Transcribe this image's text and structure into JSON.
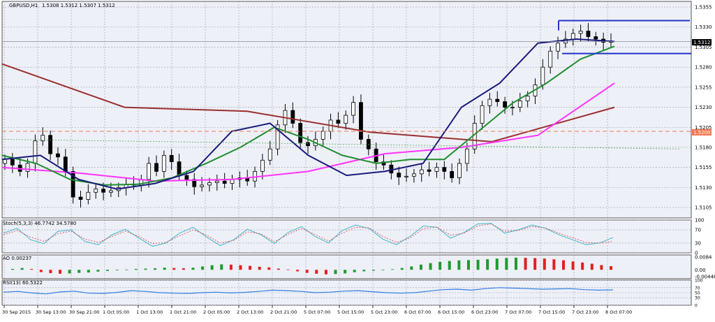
{
  "chart_data": [
    {
      "type": "candlestick",
      "title": "GBPUSD,H1",
      "ohlc_header": "1.5308 1.5312 1.5307 1.5312",
      "y_ticks": [
        "1.5355",
        "1.5330",
        "1.5305",
        "1.5280",
        "1.5255",
        "1.5230",
        "1.5205",
        "1.5180",
        "1.5155",
        "1.5130",
        "1.5105"
      ],
      "ylim": [
        1.5092,
        1.5362
      ],
      "current_price": "1.5312",
      "level_label": "1.5200",
      "level_value": 1.52,
      "resistance": 1.5338,
      "support": 1.5297,
      "x_ticks": [
        "30 Sep 2015",
        "30 Sep 13:00",
        "30 Sep 21:00",
        "1 Oct 05:00",
        "1 Oct 13:00",
        "1 Oct 21:00",
        "2 Oct 05:00",
        "2 Oct 13:00",
        "2 Oct 21:00",
        "5 Oct 07:00",
        "5 Oct 15:00",
        "5 Oct 23:00",
        "6 Oct 07:00",
        "6 Oct 15:00",
        "6 Oct 23:00",
        "7 Oct 07:00",
        "7 Oct 15:00",
        "7 Oct 23:00",
        "8 Oct 07:00"
      ],
      "closes": [
        1.5165,
        1.5158,
        1.515,
        1.516,
        1.5188,
        1.5195,
        1.5172,
        1.5168,
        1.515,
        1.5118,
        1.5115,
        1.5124,
        1.5128,
        1.5124,
        1.5126,
        1.513,
        1.5134,
        1.5133,
        1.514,
        1.516,
        1.515,
        1.517,
        1.5162,
        1.5145,
        1.514,
        1.5131,
        1.5133,
        1.5136,
        1.5138,
        1.5135,
        1.514,
        1.5142,
        1.5138,
        1.515,
        1.5164,
        1.5178,
        1.5208,
        1.5226,
        1.521,
        1.5186,
        1.5182,
        1.519,
        1.52,
        1.5214,
        1.521,
        1.522,
        1.5236,
        1.519,
        1.5178,
        1.5162,
        1.5158,
        1.5148,
        1.5143,
        1.5144,
        1.5147,
        1.5152,
        1.515,
        1.5155,
        1.515,
        1.5142,
        1.516,
        1.5178,
        1.521,
        1.5232,
        1.524,
        1.5237,
        1.523,
        1.523,
        1.5238,
        1.5244,
        1.5258,
        1.528,
        1.53,
        1.531,
        1.5315,
        1.5322,
        1.5325,
        1.5318,
        1.5315,
        1.5311,
        1.5312
      ],
      "ma_200": [
        1.5284,
        1.523,
        1.5225,
        1.5199,
        1.5187,
        1.523
      ],
      "ma_100": [
        1.5155,
        1.5148,
        1.5138,
        1.514,
        1.515,
        1.5172,
        1.518,
        1.5195,
        1.526
      ],
      "ma_50": [
        1.517,
        1.516,
        1.514,
        1.5133,
        1.5134,
        1.5142,
        1.516,
        1.518,
        1.5205,
        1.519,
        1.517,
        1.516,
        1.5165,
        1.5165,
        1.52,
        1.5235,
        1.526,
        1.529,
        1.5306
      ],
      "ma_20": [
        1.5165,
        1.517,
        1.514,
        1.5128,
        1.5135,
        1.515,
        1.52,
        1.521,
        1.517,
        1.5145,
        1.515,
        1.516,
        1.523,
        1.526,
        1.531,
        1.5315,
        1.5312
      ]
    },
    {
      "type": "line",
      "title": "Stoch(5,3,3) 46.7742 34.5780",
      "y_ticks": [
        "100",
        "70",
        "30",
        "0"
      ],
      "ylim": [
        0,
        100
      ],
      "series": [
        {
          "values": [
            60,
            75,
            40,
            28,
            65,
            70,
            35,
            25,
            55,
            72,
            45,
            20,
            30,
            60,
            78,
            48,
            22,
            40,
            72,
            55,
            28,
            62,
            80,
            50,
            30,
            68,
            85,
            74,
            42,
            25,
            50,
            82,
            78,
            45,
            62,
            88,
            90,
            60,
            70,
            85,
            75,
            55,
            40,
            25,
            30,
            47
          ]
        },
        {
          "values": [
            55,
            68,
            48,
            35,
            58,
            66,
            42,
            32,
            50,
            66,
            50,
            28,
            32,
            52,
            70,
            54,
            30,
            38,
            64,
            58,
            34,
            56,
            74,
            56,
            36,
            60,
            78,
            76,
            50,
            32,
            45,
            74,
            78,
            54,
            60,
            82,
            88,
            66,
            68,
            80,
            76,
            60,
            46,
            32,
            30,
            35
          ]
        }
      ]
    },
    {
      "type": "bar",
      "title": "AO 0.00237",
      "y_ticks": [
        "0.0084",
        "0.00",
        "-0.00448"
      ],
      "ylim": [
        -0.00448,
        0.0084
      ],
      "values": [
        0.0006,
        0.0012,
        0.0005,
        -0.0015,
        -0.0022,
        -0.0026,
        -0.0024,
        -0.002,
        -0.0018,
        -0.0012,
        -0.0008,
        -0.0004,
        0.0002,
        0.0006,
        0.0008,
        0.001,
        0.0014,
        0.0012,
        0.001,
        0.0014,
        0.0022,
        0.003,
        0.0036,
        0.0034,
        0.003,
        0.0026,
        0.002,
        0.0016,
        0.0008,
        0.0002,
        -0.001,
        -0.002,
        -0.0026,
        -0.003,
        -0.0028,
        -0.0024,
        -0.0016,
        -0.001,
        -0.0006,
        -0.0003,
        0.0004,
        0.0012,
        0.0022,
        0.0034,
        0.0044,
        0.0052,
        0.0058,
        0.0062,
        0.0064,
        0.0066,
        0.007,
        0.0074,
        0.0078,
        0.008,
        0.0079,
        0.0077,
        0.0074,
        0.0069,
        0.0063,
        0.0055,
        0.0048,
        0.004,
        0.0031,
        0.0024
      ]
    },
    {
      "type": "line",
      "title": "RSI(13) 60.5322",
      "y_ticks": [
        "100",
        "70",
        "50",
        "30",
        "0"
      ],
      "ylim": [
        0,
        100
      ],
      "values": [
        52,
        55,
        49,
        45,
        53,
        56,
        48,
        47,
        51,
        58,
        55,
        50,
        48,
        47,
        50,
        52,
        49,
        51,
        55,
        60,
        58,
        55,
        50,
        52,
        56,
        58,
        54,
        50,
        48,
        50,
        56,
        62,
        64,
        60,
        66,
        70,
        68,
        66,
        64,
        65,
        66,
        62,
        60,
        61
      ]
    }
  ]
}
